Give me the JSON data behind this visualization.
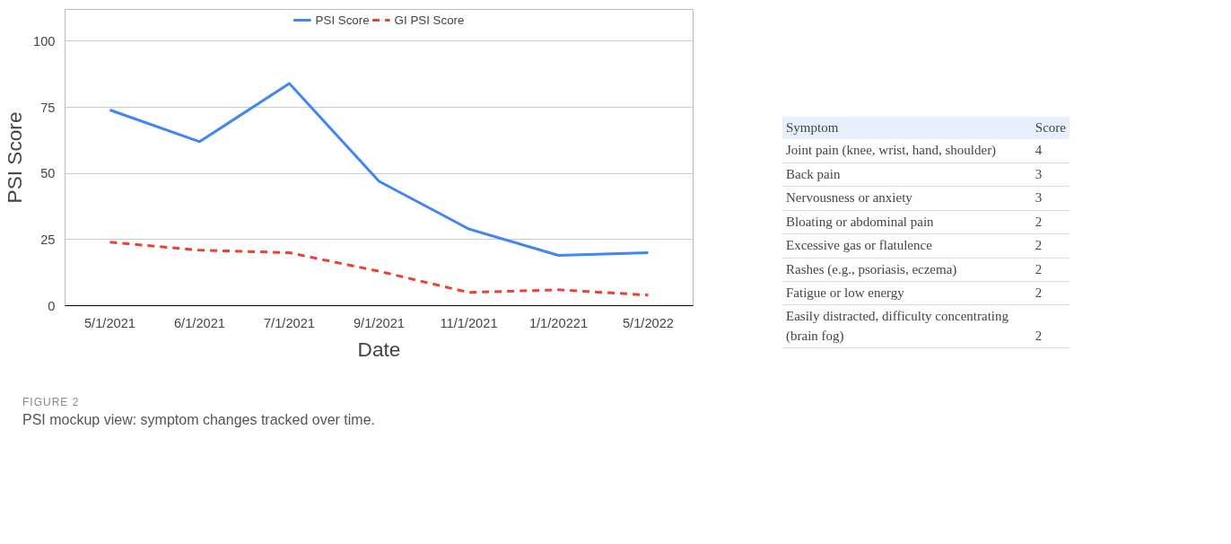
{
  "chart_data": [
    {
      "type": "line",
      "xlabel": "Date",
      "ylabel": "PSI Score",
      "categories": [
        "5/1/2021",
        "6/1/2021",
        "7/1/2021",
        "9/1/2021",
        "11/1/2021",
        "1/1/20221",
        "5/1/2022"
      ],
      "series": [
        {
          "name": "PSI Score",
          "color": "#4285f4",
          "line_style": "solid",
          "values": [
            74,
            62,
            84,
            47,
            29,
            19,
            20
          ]
        },
        {
          "name": "GI PSI Score",
          "color": "#ea4335",
          "line_style": "dashed",
          "values": [
            24,
            21,
            20,
            13,
            5,
            6,
            4
          ]
        }
      ],
      "ylim": [
        0,
        112
      ],
      "yticks": [
        0,
        25,
        50,
        75,
        100
      ],
      "grid": "y",
      "legend": "top",
      "annotations": [
        "FIGURE 2",
        "PSI mockup view: symptom changes tracked over time."
      ]
    },
    {
      "type": "other",
      "xlabel": "Symptom",
      "ylabel": "Score",
      "data_labels": true,
      "categories": [
        "Joint pain (knee, wrist, hand, shoulder)",
        "Back pain",
        "Nervousness or anxiety",
        "Bloating or abdominal pain",
        "Excessive gas or flatulence",
        "Rashes (e.g., psoriasis, eczema)",
        "Fatigue or low energy",
        "Easily distracted, difficulty concentrating (brain fog)"
      ],
      "values": [
        4,
        3,
        3,
        2,
        2,
        2,
        2,
        2
      ]
    }
  ]
}
